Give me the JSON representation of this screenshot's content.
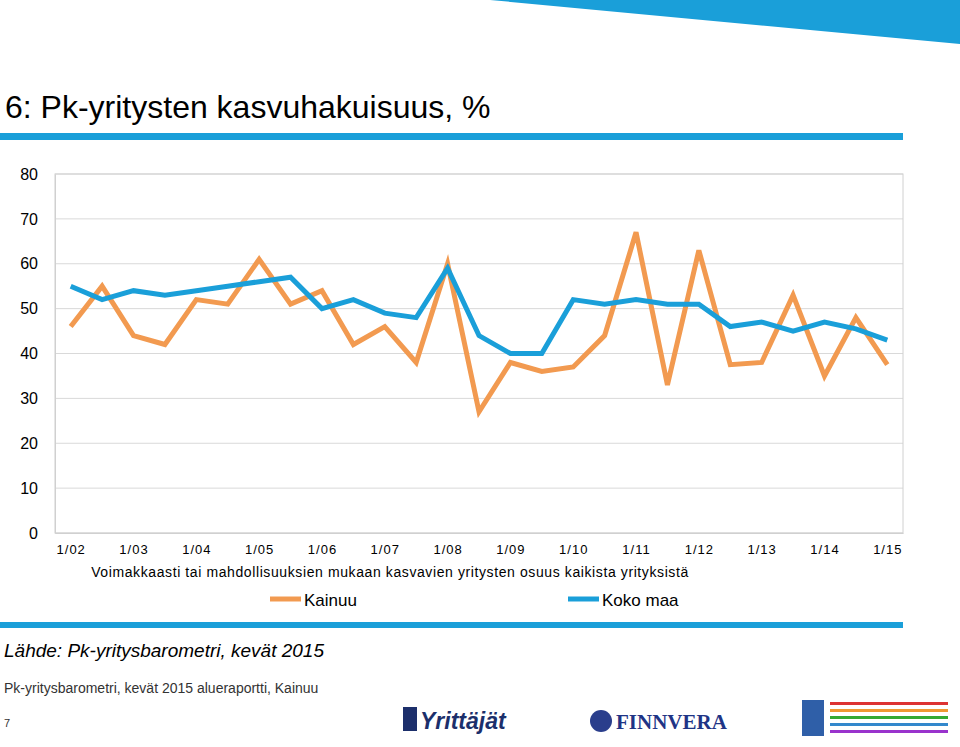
{
  "chart_data": {
    "type": "line",
    "title": "6: Pk-yritysten kasvuhakuisuus, %",
    "xlabel": "Voimakkaasti tai mahdollisuuksien mukaan kasvavien yritysten osuus kaikista yrityksistä",
    "categories": [
      "1/02",
      null,
      "1/03",
      null,
      "1/04",
      null,
      "1/05",
      null,
      "1/06",
      null,
      "1/07",
      null,
      "1/08",
      null,
      "1/09",
      null,
      "1/10",
      null,
      "1/11",
      null,
      "1/12",
      null,
      "1/13",
      null,
      "1/14",
      null,
      "1/15"
    ],
    "series": [
      {
        "name": "Kainuu",
        "color": "#f29a50",
        "values": [
          46,
          55,
          44,
          42,
          52,
          51,
          61,
          51,
          54,
          42,
          46,
          38,
          60,
          27,
          38,
          36,
          37,
          44,
          67,
          33,
          63,
          37.5,
          38,
          53,
          35,
          48,
          37.5
        ]
      },
      {
        "name": "Koko maa",
        "color": "#1a9fd9",
        "values": [
          55,
          52,
          54,
          53,
          54,
          55,
          56,
          57,
          50,
          52,
          49,
          48,
          59,
          44,
          40,
          40,
          52,
          51,
          52,
          51,
          51,
          46,
          47,
          45,
          47,
          45.5,
          43
        ]
      }
    ],
    "ylim": [
      0,
      80
    ],
    "yticks": [
      0,
      10,
      20,
      30,
      40,
      50,
      60,
      70,
      80
    ],
    "grid": true,
    "legend": "bottom"
  },
  "page": {
    "source": "Lähde: Pk-yritysbarometri, kevät 2015",
    "footer": "Pk-yritysbarometri, kevät 2015 alueraportti, Kainuu",
    "page_number": "7",
    "logos": [
      "Yrittäjät",
      "FINNVERA"
    ]
  }
}
